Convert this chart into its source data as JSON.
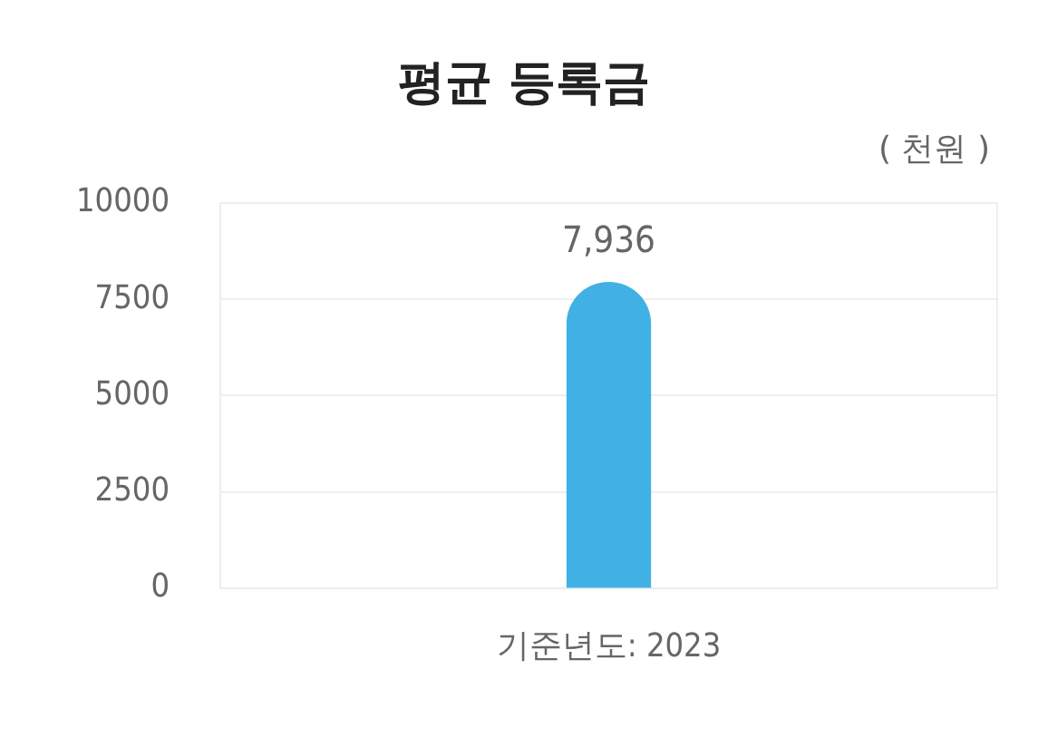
{
  "chart_data": {
    "type": "bar",
    "title": "평균 등록금",
    "ylabel": "( 천원 )",
    "categories": [
      "기준년도: 2023"
    ],
    "values": [
      7936
    ],
    "value_labels": [
      "7,936"
    ],
    "color": "#41b1e5",
    "ylim": [
      0,
      10000
    ],
    "yticks": [
      0,
      2500,
      5000,
      7500,
      10000
    ],
    "grid": "y"
  }
}
